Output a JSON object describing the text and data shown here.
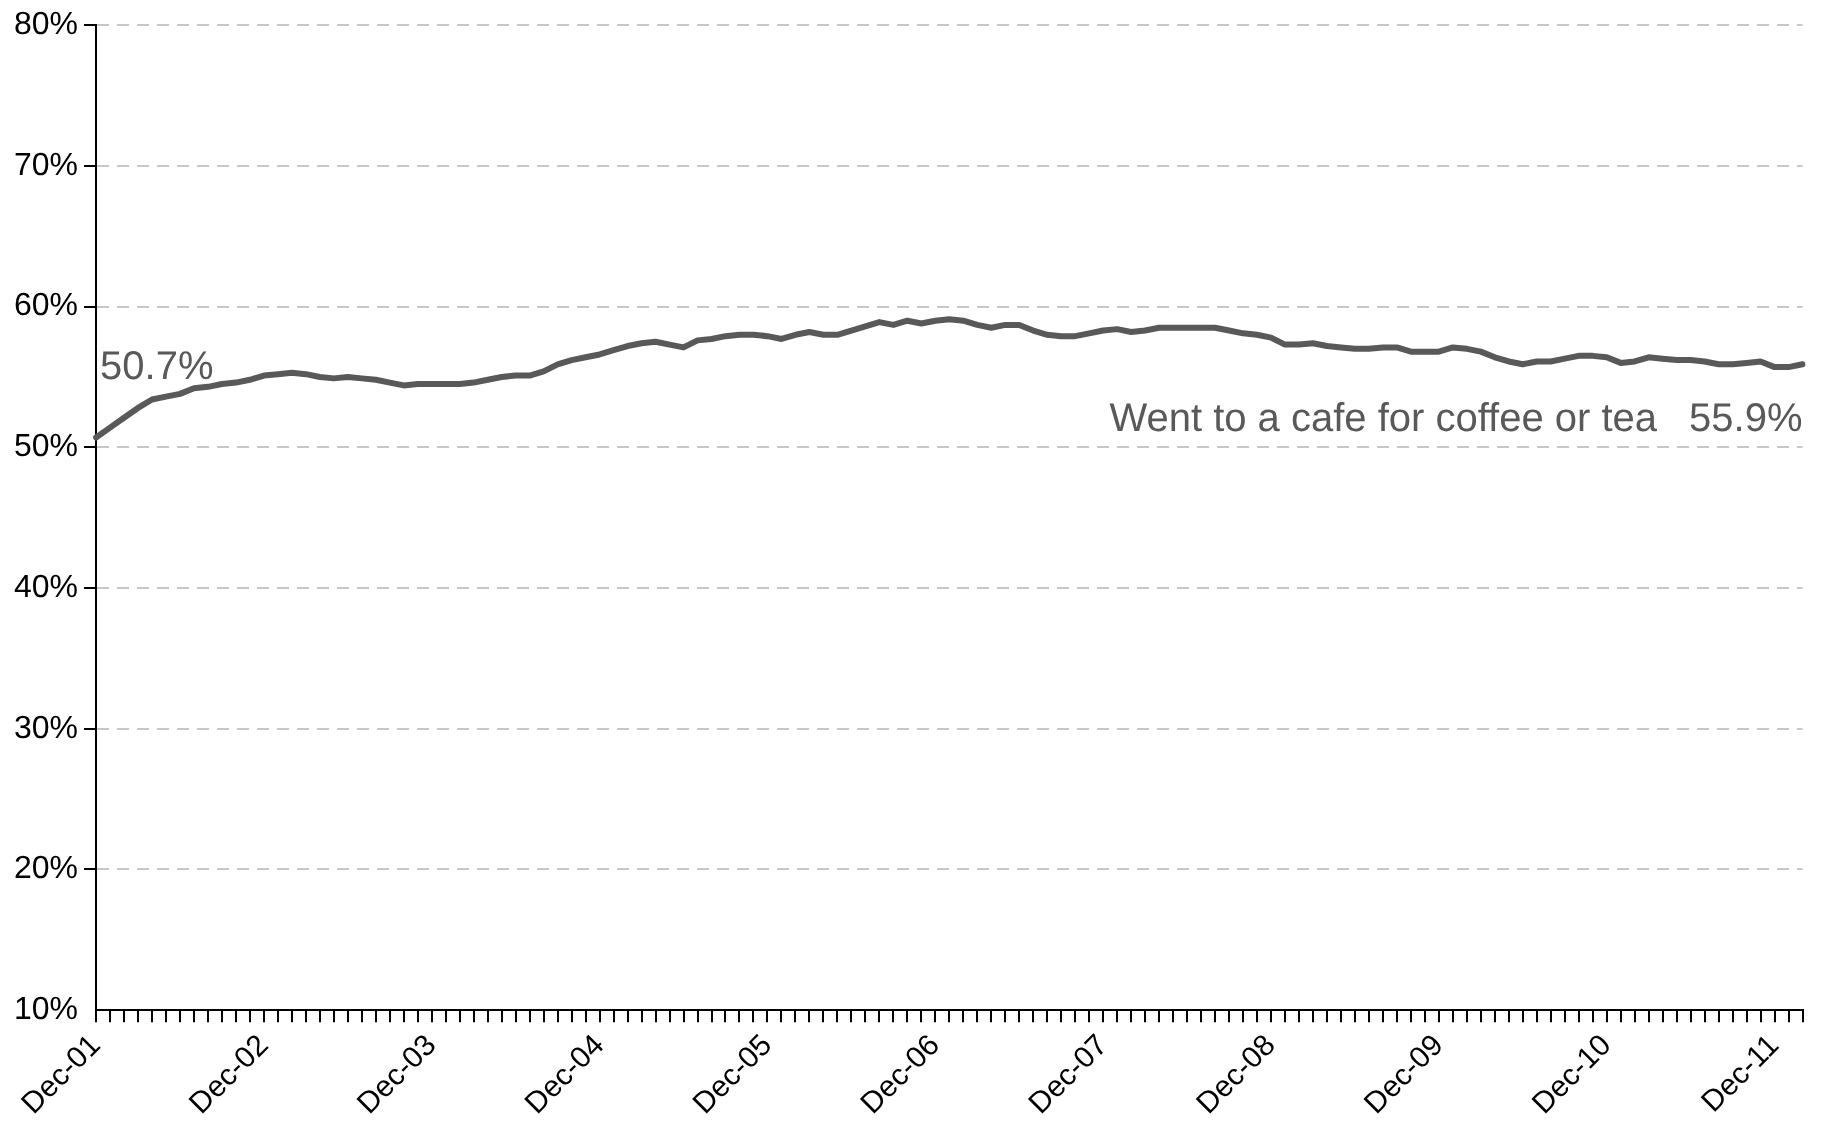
{
  "chart_data": {
    "type": "line",
    "categories": [
      "Dec-01",
      null,
      null,
      null,
      null,
      null,
      null,
      null,
      null,
      null,
      null,
      null,
      "Dec-02",
      null,
      null,
      null,
      null,
      null,
      null,
      null,
      null,
      null,
      null,
      null,
      "Dec-03",
      null,
      null,
      null,
      null,
      null,
      null,
      null,
      null,
      null,
      null,
      null,
      "Dec-04",
      null,
      null,
      null,
      null,
      null,
      null,
      null,
      null,
      null,
      null,
      null,
      "Dec-05",
      null,
      null,
      null,
      null,
      null,
      null,
      null,
      null,
      null,
      null,
      null,
      "Dec-06",
      null,
      null,
      null,
      null,
      null,
      null,
      null,
      null,
      null,
      null,
      null,
      "Dec-07",
      null,
      null,
      null,
      null,
      null,
      null,
      null,
      null,
      null,
      null,
      null,
      "Dec-08",
      null,
      null,
      null,
      null,
      null,
      null,
      null,
      null,
      null,
      null,
      null,
      "Dec-09",
      null,
      null,
      null,
      null,
      null,
      null,
      null,
      null,
      null,
      null,
      null,
      "Dec-10",
      null,
      null,
      null,
      null,
      null,
      null,
      null,
      null,
      null,
      null,
      null,
      "Dec-11",
      null,
      null
    ],
    "series": [
      {
        "name": "Went to a cafe for coffee or tea",
        "color": "#595959",
        "values": [
          50.7,
          51.4,
          52.1,
          52.8,
          53.4,
          53.6,
          53.8,
          54.2,
          54.3,
          54.5,
          54.6,
          54.8,
          55.1,
          55.2,
          55.3,
          55.2,
          55.0,
          54.9,
          55.0,
          54.9,
          54.8,
          54.6,
          54.4,
          54.5,
          54.5,
          54.5,
          54.5,
          54.6,
          54.8,
          55.0,
          55.1,
          55.1,
          55.4,
          55.9,
          56.2,
          56.4,
          56.6,
          56.9,
          57.2,
          57.4,
          57.5,
          57.3,
          57.1,
          57.6,
          57.7,
          57.9,
          58.0,
          58.0,
          57.9,
          57.7,
          58.0,
          58.2,
          58.0,
          58.0,
          58.3,
          58.6,
          58.9,
          58.7,
          59.0,
          58.8,
          59.0,
          59.1,
          59.0,
          58.7,
          58.5,
          58.7,
          58.7,
          58.3,
          58.0,
          57.9,
          57.9,
          58.1,
          58.3,
          58.4,
          58.2,
          58.3,
          58.5,
          58.5,
          58.5,
          58.5,
          58.5,
          58.3,
          58.1,
          58.0,
          57.8,
          57.3,
          57.3,
          57.4,
          57.2,
          57.1,
          57.0,
          57.0,
          57.1,
          57.1,
          56.8,
          56.8,
          56.8,
          57.1,
          57.0,
          56.8,
          56.4,
          56.1,
          55.9,
          56.1,
          56.1,
          56.3,
          56.5,
          56.5,
          56.4,
          56.0,
          56.1,
          56.4,
          56.3,
          56.2,
          56.2,
          56.1,
          55.9,
          55.9,
          56.0,
          56.1,
          55.7,
          55.7,
          55.9
        ],
        "value_labels": [
          "50.7%",
          null,
          null,
          null,
          null,
          null,
          null,
          null,
          null,
          null,
          null,
          null,
          null,
          null,
          null,
          null,
          null,
          null,
          null,
          null,
          null,
          null,
          null,
          null,
          null,
          null,
          null,
          null,
          null,
          null,
          null,
          null,
          null,
          null,
          null,
          null,
          null,
          null,
          null,
          null,
          null,
          null,
          null,
          null,
          null,
          null,
          null,
          null,
          null,
          null,
          null,
          null,
          null,
          null,
          null,
          null,
          null,
          null,
          null,
          null,
          null,
          null,
          null,
          null,
          null,
          null,
          null,
          null,
          null,
          null,
          null,
          null,
          null,
          null,
          null,
          null,
          null,
          null,
          null,
          null,
          null,
          null,
          null,
          null,
          null,
          null,
          null,
          null,
          null,
          null,
          null,
          null,
          null,
          null,
          null,
          null,
          null,
          null,
          null,
          null,
          null,
          null,
          null,
          null,
          null,
          null,
          null,
          null,
          null,
          null,
          null,
          null,
          null,
          null,
          null,
          null,
          null,
          null,
          null,
          null,
          null,
          null,
          "55.9%"
        ]
      }
    ],
    "ylim": [
      10,
      80
    ],
    "yticks": [
      {
        "value": 10,
        "label": "10%"
      },
      {
        "value": 20,
        "label": "20%"
      },
      {
        "value": 30,
        "label": "30%"
      },
      {
        "value": 40,
        "label": "40%"
      },
      {
        "value": 50,
        "label": "50%"
      },
      {
        "value": 60,
        "label": "60%"
      },
      {
        "value": 70,
        "label": "70%"
      },
      {
        "value": 80,
        "label": "80%"
      }
    ],
    "grid": "y",
    "legend": false,
    "marker": "none",
    "line_style": "solid"
  }
}
